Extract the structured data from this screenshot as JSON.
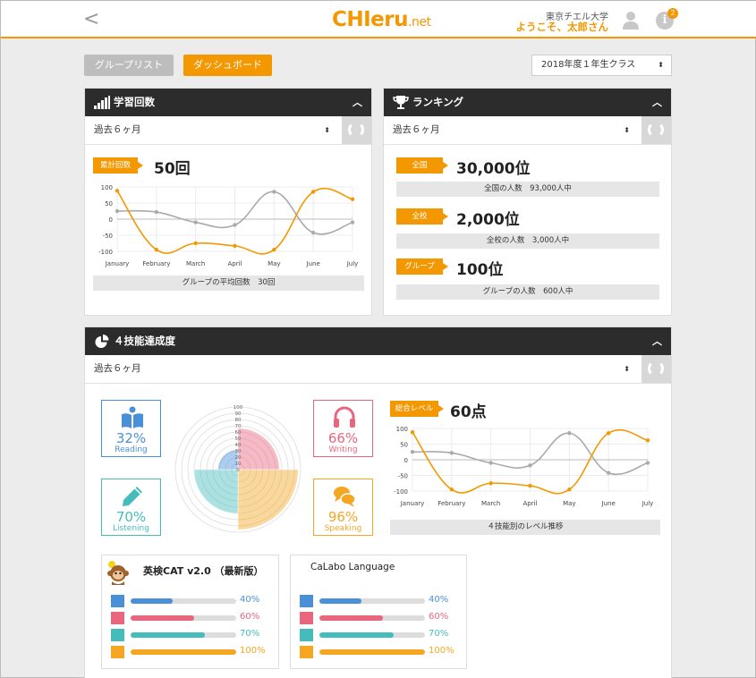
{
  "header": {
    "back_glyph": "<",
    "logo_main": "CHIeru",
    "logo_suffix": ".net",
    "school": "東京チエル大学",
    "welcome": "ようこそ、太郎さん",
    "info_glyph": "i",
    "notif_count": "2"
  },
  "toolbar": {
    "group_list": "グループリスト",
    "dashboard": "ダッシュボード",
    "class_select": "2018年度１年生クラス"
  },
  "study": {
    "title": "学習回数",
    "period": "過去６ヶ月",
    "tag": "累計回数",
    "value": "50回",
    "avg_label": "グループの平均回数　30回",
    "chart_data": {
      "type": "line",
      "categories": [
        "January",
        "February",
        "March",
        "April",
        "May",
        "June",
        "July"
      ],
      "ylim": [
        -100,
        100
      ],
      "yticks": [
        100,
        50,
        0,
        -50,
        -100
      ],
      "series": [
        {
          "color": "#aaaaaa",
          "values": [
            25,
            22,
            -10,
            -18,
            85,
            -42,
            -10
          ]
        },
        {
          "color": "#f39800",
          "values": [
            88,
            -95,
            -75,
            -83,
            -95,
            85,
            62
          ]
        }
      ]
    }
  },
  "ranking": {
    "title": "ランキング",
    "period": "過去６ヶ月",
    "items": [
      {
        "tag": "全国",
        "value": "30,000位",
        "note": "全国の人数　93,000人中"
      },
      {
        "tag": "全校",
        "value": "2,000位",
        "note": "全校の人数　3,000人中"
      },
      {
        "tag": "グループ",
        "value": "100位",
        "note": "グループの人数　600人中"
      }
    ]
  },
  "skills": {
    "title": "４技能達成度",
    "period": "過去６ヶ月",
    "reading": {
      "pct": "32%",
      "label": "Reading",
      "color": "#4a90d9"
    },
    "writing": {
      "pct": "66%",
      "label": "Writing",
      "color": "#e8667e"
    },
    "listening": {
      "pct": "70%",
      "label": "Listening",
      "color": "#45bcbc"
    },
    "speaking": {
      "pct": "96%",
      "label": "Speaking",
      "color": "#f5a623"
    },
    "radar_ticks": [
      "100",
      "90",
      "80",
      "70",
      "60",
      "50",
      "40",
      "30",
      "20",
      "10",
      "0"
    ],
    "level_tag": "総合レベル",
    "level_value": "60点",
    "level_label": "４技能別のレベル推移",
    "chart_data": {
      "type": "line",
      "categories": [
        "January",
        "February",
        "March",
        "April",
        "May",
        "June",
        "July"
      ],
      "ylim": [
        -100,
        100
      ],
      "yticks": [
        100,
        50,
        0,
        -50,
        -100
      ],
      "series": [
        {
          "color": "#aaaaaa",
          "values": [
            25,
            22,
            -10,
            -18,
            85,
            -42,
            -10
          ]
        },
        {
          "color": "#f39800",
          "values": [
            88,
            -95,
            -75,
            -83,
            -95,
            85,
            62
          ]
        }
      ]
    }
  },
  "cards": [
    {
      "title": "英検CAT v2.0 （最新版）",
      "values": [
        "40%",
        "60%",
        "70%",
        "100%"
      ],
      "fractions": [
        0.4,
        0.6,
        0.7,
        1.0
      ]
    },
    {
      "title": "CaLabo Language",
      "values": [
        "40%",
        "60%",
        "70%",
        "100%"
      ],
      "fractions": [
        0.4,
        0.6,
        0.7,
        1.0
      ]
    }
  ],
  "skill_colors": [
    "#4a90d9",
    "#e8667e",
    "#45bcbc",
    "#f5a623"
  ]
}
